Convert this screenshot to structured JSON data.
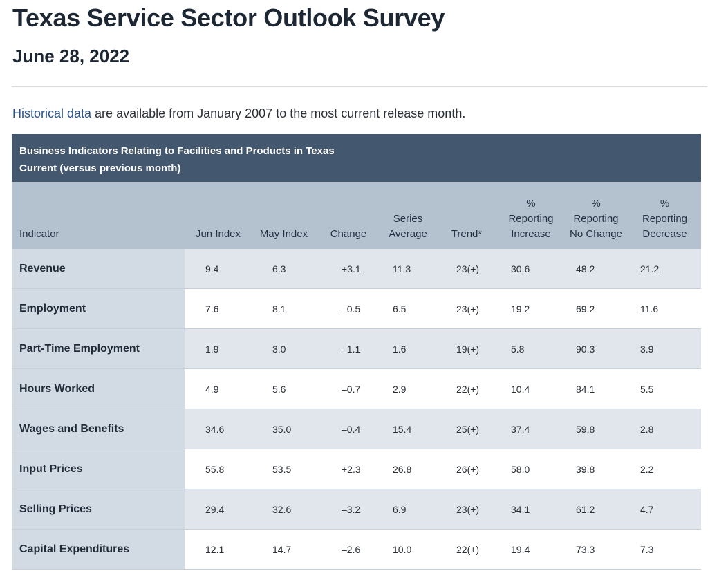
{
  "header": {
    "title": "Texas Service Sector Outlook Survey",
    "date": "June 28, 2022"
  },
  "intro": {
    "link_text": "Historical data",
    "rest_text": " are available from January 2007 to the most current release month."
  },
  "table": {
    "caption_line1": "Business Indicators Relating to Facilities and Products in Texas",
    "caption_line2": "Current (versus previous month)",
    "columns": [
      [
        "",
        "",
        "Indicator"
      ],
      [
        "",
        "",
        "Jun Index"
      ],
      [
        "",
        "",
        "May Index"
      ],
      [
        "",
        "",
        "Change"
      ],
      [
        "",
        "Series",
        "Average"
      ],
      [
        "",
        "",
        "Trend*"
      ],
      [
        "%",
        "Reporting",
        "Increase"
      ],
      [
        "%",
        "Reporting",
        "No Change"
      ],
      [
        "%",
        "Reporting",
        "Decrease"
      ]
    ],
    "rows": [
      [
        "Revenue",
        "9.4",
        "6.3",
        "+3.1",
        "11.3",
        "23(+)",
        "30.6",
        "48.2",
        "21.2"
      ],
      [
        "Employment",
        "7.6",
        "8.1",
        "–0.5",
        "6.5",
        "23(+)",
        "19.2",
        "69.2",
        "11.6"
      ],
      [
        "Part-Time Employment",
        "1.9",
        "3.0",
        "–1.1",
        "1.6",
        "19(+)",
        "5.8",
        "90.3",
        "3.9"
      ],
      [
        "Hours Worked",
        "4.9",
        "5.6",
        "–0.7",
        "2.9",
        "22(+)",
        "10.4",
        "84.1",
        "5.5"
      ],
      [
        "Wages and Benefits",
        "34.6",
        "35.0",
        "–0.4",
        "15.4",
        "25(+)",
        "37.4",
        "59.8",
        "2.8"
      ],
      [
        "Input Prices",
        "55.8",
        "53.5",
        "+2.3",
        "26.8",
        "26(+)",
        "58.0",
        "39.8",
        "2.2"
      ],
      [
        "Selling Prices",
        "29.4",
        "32.6",
        "–3.2",
        "6.9",
        "23(+)",
        "34.1",
        "61.2",
        "4.7"
      ],
      [
        "Capital Expenditures",
        "12.1",
        "14.7",
        "–2.6",
        "10.0",
        "22(+)",
        "19.4",
        "73.3",
        "7.3"
      ]
    ]
  },
  "colors": {
    "caption_bg": "#43586f",
    "header_bg": "#b4c2cf",
    "indicator_bg": "#d2dbe3",
    "stripe_bg": "#e1e6ec",
    "link": "#2b5186"
  }
}
